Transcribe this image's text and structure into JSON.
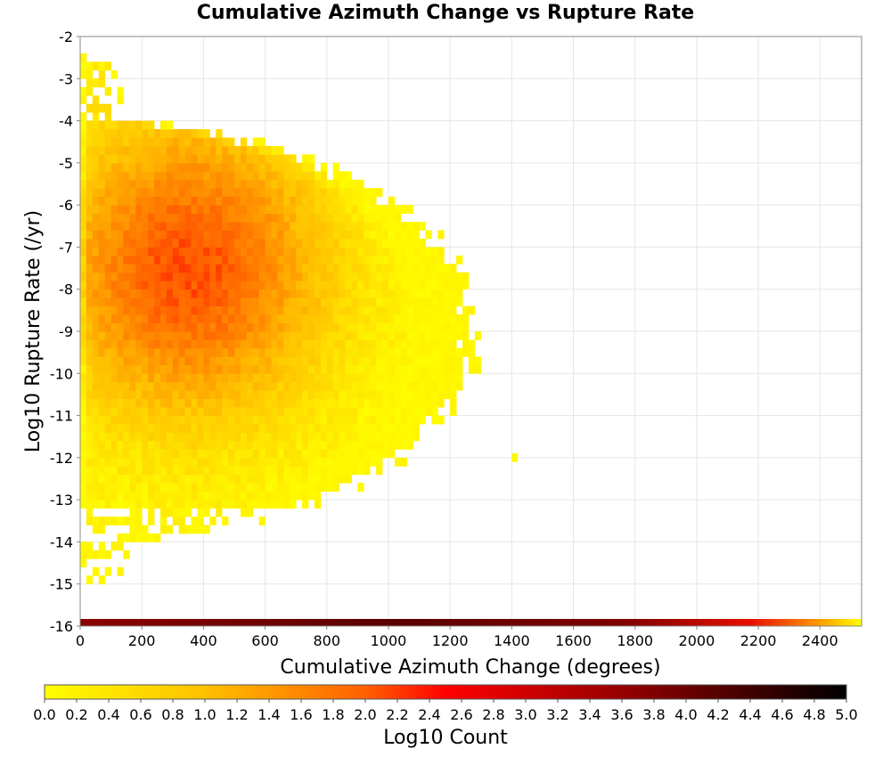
{
  "chart_data": {
    "type": "heatmap",
    "title": "Cumulative Azimuth Change vs Rupture Rate",
    "xlabel": "Cumulative Azimuth Change (degrees)",
    "ylabel": "Log10 Rupture Rate (/yr)",
    "xlim": [
      0,
      2535
    ],
    "ylim": [
      -16,
      -2
    ],
    "x_ticks": [
      "0",
      "200",
      "400",
      "600",
      "800",
      "1000",
      "1200",
      "1400",
      "1600",
      "1800",
      "2000",
      "2200",
      "2400"
    ],
    "y_ticks": [
      "-2",
      "-3",
      "-4",
      "-5",
      "-6",
      "-7",
      "-8",
      "-9",
      "-10",
      "-11",
      "-12",
      "-13",
      "-14",
      "-15",
      "-16"
    ],
    "grid": true,
    "bin_width_x": 20,
    "bin_height_y": 0.2,
    "peak_count_log10": 2.1,
    "peak_location": {
      "x": 350,
      "y": -7.5
    },
    "data_extent": {
      "x_max": 1300,
      "y_min": -15,
      "y_max": -2.6
    },
    "outliers": [
      {
        "x": 1410,
        "y": -12,
        "log10_count": 0.1
      }
    ],
    "colorbar": {
      "label": "Log10 Count",
      "min": 0.0,
      "max": 5.0,
      "ticks": [
        "0.0",
        "0.2",
        "0.4",
        "0.6",
        "0.8",
        "1.0",
        "1.2",
        "1.4",
        "1.6",
        "1.8",
        "2.0",
        "2.2",
        "2.4",
        "2.6",
        "2.8",
        "3.0",
        "3.2",
        "3.4",
        "3.6",
        "3.8",
        "4.0",
        "4.2",
        "4.4",
        "4.6",
        "4.8",
        "5.0"
      ],
      "colors": [
        "#ffff00",
        "#ffa500",
        "#ff0000",
        "#800000",
        "#000000"
      ]
    }
  }
}
